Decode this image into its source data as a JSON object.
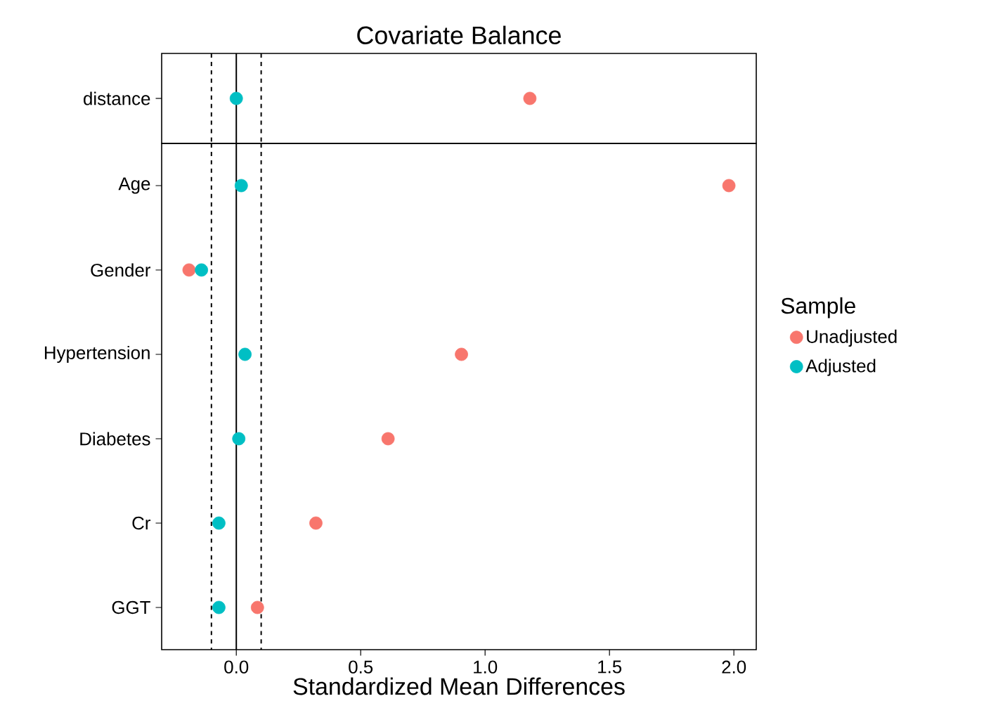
{
  "chart_data": [
    {
      "type": "scatter",
      "orientation": "horizontal",
      "title": "Covariate Balance",
      "categories": [
        "distance"
      ],
      "series": [
        {
          "color": "#f8766d",
          "values": [
            1.18
          ]
        },
        {
          "color": "#00bfc4",
          "values": [
            0.0
          ]
        }
      ],
      "xlim": [
        -0.3,
        2.09
      ],
      "tick_labels": "y",
      "marker": "circle",
      "ref_lines": [
        {
          "axis": "x",
          "value": -0.1,
          "line_style": "dashed",
          "color": "#000000"
        },
        {
          "axis": "x",
          "value": 0,
          "line_style": "solid",
          "color": "#000000"
        },
        {
          "axis": "x",
          "value": 0.1,
          "line_style": "dashed",
          "color": "#000000"
        }
      ]
    },
    {
      "type": "scatter",
      "orientation": "horizontal",
      "xlabel": "Standardized Mean Differences",
      "legend_title": "Sample",
      "legend": "right",
      "categories": [
        "Age",
        "Gender",
        "Hypertension",
        "Diabetes",
        "Cr",
        "GGT"
      ],
      "series": [
        {
          "name": "Unadjusted",
          "color": "#f8766d",
          "values": [
            1.98,
            -0.19,
            0.905,
            0.61,
            0.32,
            0.085
          ]
        },
        {
          "name": "Adjusted",
          "color": "#00bfc4",
          "values": [
            0.02,
            -0.14,
            0.035,
            0.01,
            -0.07,
            -0.07
          ]
        }
      ],
      "xlim": [
        -0.3,
        2.09
      ],
      "xticks": [
        {
          "value": 0,
          "label": "0.0"
        },
        {
          "value": 0.5,
          "label": "0.5"
        },
        {
          "value": 1,
          "label": "1.0"
        },
        {
          "value": 1.5,
          "label": "1.5"
        },
        {
          "value": 2,
          "label": "2.0"
        }
      ],
      "marker": "circle",
      "ref_lines": [
        {
          "axis": "x",
          "value": -0.1,
          "line_style": "dashed",
          "color": "#000000"
        },
        {
          "axis": "x",
          "value": 0,
          "line_style": "solid",
          "color": "#000000"
        },
        {
          "axis": "x",
          "value": 0.1,
          "line_style": "dashed",
          "color": "#000000"
        }
      ]
    }
  ]
}
